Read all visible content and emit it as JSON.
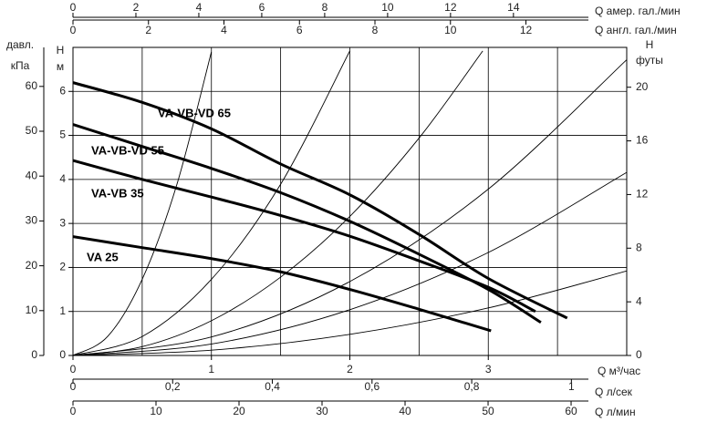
{
  "chart_data": {
    "type": "line",
    "x_label": "Q  м³/час",
    "y_label": [
      "H",
      "м"
    ],
    "xlim": [
      0,
      4
    ],
    "xticks": [
      0,
      1,
      2,
      3
    ],
    "x_grid": [
      0.5,
      1,
      1.5,
      2,
      2.5,
      3,
      3.5
    ],
    "ylim": [
      0,
      7
    ],
    "yticks": [
      0,
      1,
      2,
      3,
      4,
      5,
      6
    ],
    "y_grid": [
      1,
      2,
      3,
      4,
      5,
      6
    ],
    "series": [
      {
        "name": "VA-VB-VD 65",
        "color": "#000000",
        "x": [
          0,
          0.5,
          1,
          1.5,
          2,
          2.5,
          3,
          3.57
        ],
        "values": [
          6.2,
          5.75,
          5.15,
          4.35,
          3.65,
          2.75,
          1.75,
          0.85
        ]
      },
      {
        "name": "VA-VB-VD 55",
        "color": "#000000",
        "x": [
          0,
          0.5,
          1,
          1.5,
          2,
          2.5,
          3,
          3.38
        ],
        "values": [
          5.25,
          4.75,
          4.25,
          3.7,
          3.05,
          2.3,
          1.5,
          0.75
        ]
      },
      {
        "name": "VA-VB 35",
        "color": "#000000",
        "x": [
          0,
          0.5,
          1,
          1.5,
          2,
          2.5,
          3,
          3.34
        ],
        "values": [
          4.43,
          4.0,
          3.6,
          3.18,
          2.71,
          2.15,
          1.55,
          1.0
        ]
      },
      {
        "name": "VA 25",
        "color": "#000000",
        "x": [
          0,
          0.5,
          1,
          1.5,
          2,
          2.5,
          3.02
        ],
        "values": [
          2.7,
          2.45,
          2.2,
          1.9,
          1.5,
          1.05,
          0.56
        ]
      }
    ],
    "resistance_curves": [
      {
        "x": [
          0,
          0.25,
          0.5,
          0.75,
          1.0
        ],
        "values": [
          0,
          0.43,
          1.73,
          3.88,
          6.9
        ]
      },
      {
        "x": [
          0,
          0.5,
          1,
          1.5,
          2
        ],
        "values": [
          0,
          0.43,
          1.73,
          3.89,
          6.92
        ]
      },
      {
        "x": [
          0,
          0.5,
          1,
          1.5,
          2,
          2.5,
          2.96
        ],
        "values": [
          0,
          0.2,
          0.79,
          1.78,
          3.16,
          4.94,
          6.92
        ]
      },
      {
        "x": [
          0,
          1,
          2,
          3,
          4
        ],
        "values": [
          0,
          0.42,
          1.68,
          3.78,
          6.72
        ]
      },
      {
        "x": [
          0,
          1,
          2,
          3,
          4
        ],
        "values": [
          0,
          0.26,
          1.04,
          2.34,
          4.16
        ]
      },
      {
        "x": [
          0,
          1,
          2,
          3,
          4
        ],
        "values": [
          0,
          0.12,
          0.48,
          1.08,
          1.92
        ]
      }
    ],
    "y_left2": {
      "label": [
        "давл.",
        "кПа"
      ],
      "lim": [
        0,
        68.7
      ],
      "ticks": [
        0,
        10,
        20,
        30,
        40,
        50,
        60
      ]
    },
    "y2": {
      "label": [
        "H",
        "футы"
      ],
      "lim": [
        0,
        22.97
      ],
      "ticks": [
        0,
        4,
        8,
        12,
        16,
        20
      ]
    },
    "x_top1": {
      "label": "Q  амер. гал./мин",
      "lim": [
        0,
        17.6
      ],
      "ticks": [
        0,
        2,
        4,
        6,
        8,
        10,
        12,
        14
      ]
    },
    "x_top2": {
      "label": "Q  англ. гал./мин",
      "lim": [
        0,
        14.67
      ],
      "ticks": [
        0,
        2,
        4,
        6,
        8,
        10,
        12
      ]
    },
    "x_bottom2": {
      "label": "Q  л/сек",
      "lim": [
        0,
        1.111
      ],
      "ticks": [
        0,
        {
          "value": 0.2,
          "label": "0,2"
        },
        {
          "value": 0.4,
          "label": "0,4"
        },
        {
          "value": 0.6,
          "label": "0,6"
        },
        {
          "value": 0.8,
          "label": "0,8"
        },
        1
      ]
    },
    "x_bottom3": {
      "label": "Q  л/мин",
      "lim": [
        0,
        66.7
      ],
      "ticks": [
        0,
        10,
        20,
        30,
        40,
        50,
        60
      ]
    }
  }
}
